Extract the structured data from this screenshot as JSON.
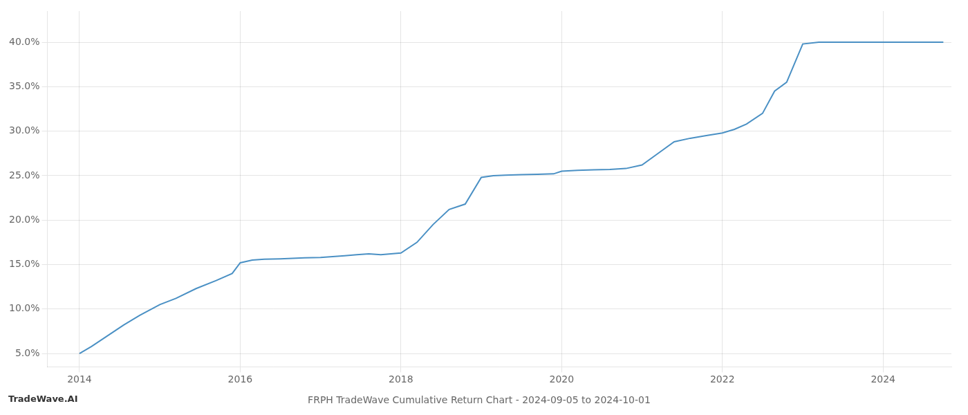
{
  "chart_data": {
    "type": "line",
    "title": "FRPH TradeWave Cumulative Return Chart - 2024-09-05 to 2024-10-01",
    "annotations": [
      "TradeWave.AI"
    ],
    "color": "#4a90c4",
    "grid": true,
    "x": [
      2014.0,
      2014.15,
      2014.35,
      2014.55,
      2014.75,
      2015.0,
      2015.2,
      2015.45,
      2015.7,
      2015.9,
      2016.0,
      2016.15,
      2016.3,
      2016.5,
      2016.65,
      2016.8,
      2017.0,
      2017.15,
      2017.3,
      2017.45,
      2017.6,
      2017.75,
      2018.0,
      2018.2,
      2018.4,
      2018.6,
      2018.8,
      2019.0,
      2019.15,
      2019.3,
      2019.5,
      2019.7,
      2019.9,
      2020.0,
      2020.2,
      2020.4,
      2020.6,
      2020.8,
      2021.0,
      2021.2,
      2021.4,
      2021.6,
      2021.8,
      2022.0,
      2022.15,
      2022.3,
      2022.5,
      2022.65,
      2022.8,
      2023.0,
      2023.2,
      2023.3,
      2023.5,
      2023.7,
      2023.8,
      2024.0,
      2024.5,
      2024.75
    ],
    "values": [
      5.0,
      5.8,
      7.0,
      8.2,
      9.3,
      10.5,
      11.2,
      12.3,
      13.2,
      14.0,
      15.2,
      15.5,
      15.6,
      15.65,
      15.7,
      15.75,
      15.8,
      15.9,
      16.0,
      16.1,
      16.2,
      16.1,
      16.3,
      17.5,
      19.5,
      21.2,
      21.8,
      24.8,
      25.0,
      25.05,
      25.1,
      25.15,
      25.2,
      25.5,
      25.6,
      25.65,
      25.7,
      25.8,
      26.2,
      27.5,
      28.8,
      29.2,
      29.5,
      29.8,
      30.2,
      30.8,
      32.0,
      34.5,
      35.5,
      39.8,
      40.0,
      40.0,
      40.0,
      40.0,
      40.0,
      40.0,
      40.0,
      40.0
    ],
    "xlim": [
      2013.6,
      2024.85
    ],
    "ylim": [
      3.5,
      43.5
    ],
    "xticks": [
      2014,
      2016,
      2018,
      2020,
      2022,
      2024
    ],
    "yticks": [
      {
        "value": 5.0,
        "label": "5.0%"
      },
      {
        "value": 10.0,
        "label": "10.0%"
      },
      {
        "value": 15.0,
        "label": "15.0%"
      },
      {
        "value": 20.0,
        "label": "20.0%"
      },
      {
        "value": 25.0,
        "label": "25.0%"
      },
      {
        "value": 30.0,
        "label": "30.0%"
      },
      {
        "value": 35.0,
        "label": "35.0%"
      },
      {
        "value": 40.0,
        "label": "40.0%"
      }
    ]
  }
}
